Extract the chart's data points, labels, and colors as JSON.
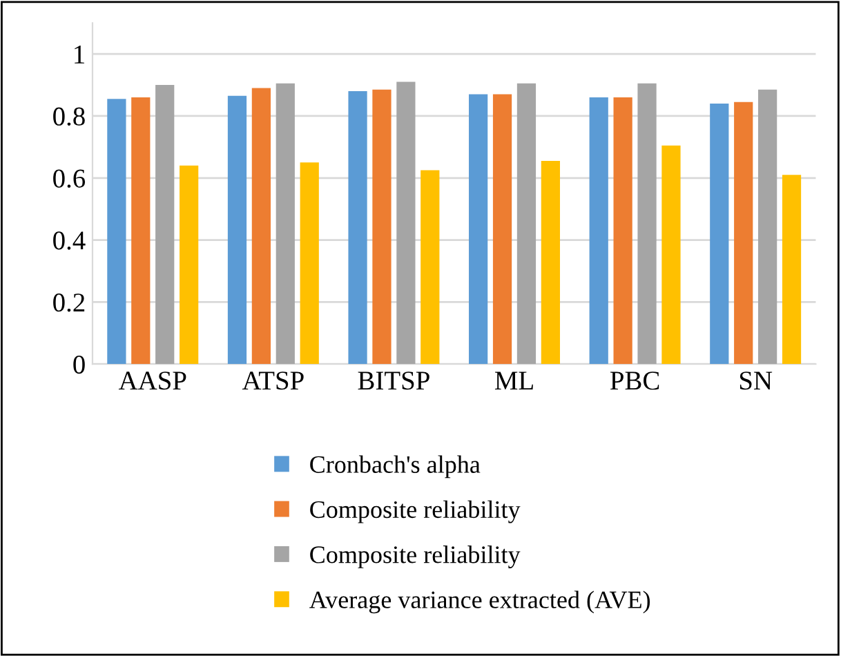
{
  "chart_data": {
    "type": "bar",
    "categories": [
      "AASP",
      "ATSP",
      "BITSP",
      "ML",
      "PBC",
      "SN"
    ],
    "series": [
      {
        "name": "Cronbach's alpha",
        "color": "#5b9bd5",
        "values": [
          0.855,
          0.865,
          0.88,
          0.87,
          0.86,
          0.84
        ]
      },
      {
        "name": "Composite reliability",
        "color": "#ed7d31",
        "values": [
          0.86,
          0.89,
          0.885,
          0.87,
          0.86,
          0.845
        ]
      },
      {
        "name": "Composite reliability",
        "color": "#a5a5a5",
        "values": [
          0.9,
          0.905,
          0.91,
          0.905,
          0.905,
          0.885
        ]
      },
      {
        "name": "Average variance extracted (AVE)",
        "color": "#ffc000",
        "values": [
          0.64,
          0.65,
          0.625,
          0.655,
          0.705,
          0.61
        ]
      }
    ],
    "ylim": [
      0,
      1.1
    ],
    "yticks": [
      0,
      0.2,
      0.4,
      0.6,
      0.8,
      1
    ],
    "grid": "y",
    "legend": "bottom"
  }
}
